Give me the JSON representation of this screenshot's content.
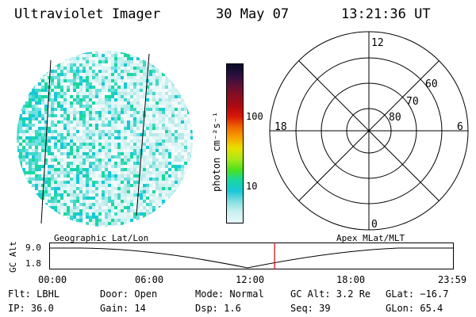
{
  "header": {
    "title": "Ultraviolet Imager",
    "date": "30 May 07",
    "time": "13:21:36 UT"
  },
  "colorbar": {
    "label": "photon cm⁻²s⁻¹",
    "ticks": [
      "100",
      "10"
    ],
    "colors": [
      "#0a0a28",
      "#2a1040",
      "#5a1038",
      "#8a0d20",
      "#b00a14",
      "#d81808",
      "#f06a00",
      "#f8a800",
      "#e8e000",
      "#a8e818",
      "#48e020",
      "#18d8a0",
      "#18c8d8",
      "#88e0e0",
      "#c8f0f0",
      "#e8f8f8"
    ]
  },
  "polar": {
    "lat_labels": [
      "60",
      "70",
      "80"
    ],
    "mlt_labels": {
      "top": "12",
      "left": "18",
      "right": "6",
      "bottom": "0"
    }
  },
  "timeline": {
    "ylabel": "GC Alt",
    "yticks": [
      "9.0",
      "1.8"
    ],
    "left_label": "Geographic Lat/Lon",
    "right_label": "Apex MLat/MLT",
    "xticks": [
      "00:00",
      "06:00",
      "12:00",
      "18:00",
      "23:59"
    ],
    "marker_time_fraction": 0.557
  },
  "info": {
    "flt": "Flt: LBHL",
    "ip": "IP: 36.0",
    "door": "Door: Open",
    "gain": "Gain: 14",
    "mode": "Mode: Normal",
    "dsp": "Dsp:   1.6",
    "gcalt": "GC Alt: 3.2 Re",
    "seq": "Seq: 39",
    "glat": "GLat: −16.7",
    "glon": "GLon:  65.4"
  }
}
